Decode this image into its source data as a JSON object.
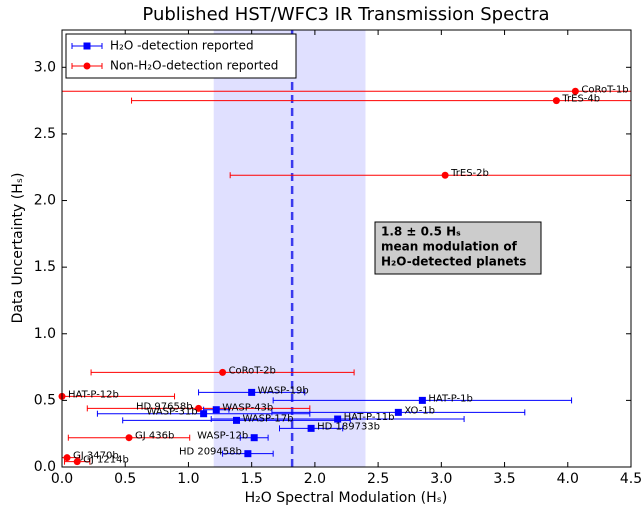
{
  "chart_data": {
    "type": "scatter",
    "title": "Published HST/WFC3 IR Transmission Spectra",
    "x_label": "H₂O Spectral Modulation (Hₛ)",
    "y_label": "Data Uncertainty (Hₛ)",
    "xlim": [
      0,
      4.5
    ],
    "ylim": [
      0,
      3.28
    ],
    "xticks": [
      {
        "value": 0,
        "label": "0.0"
      },
      {
        "value": 0.5,
        "label": "0.5"
      },
      {
        "value": 1,
        "label": "1.0"
      },
      {
        "value": 1.5,
        "label": "1.5"
      },
      {
        "value": 2,
        "label": "2.0"
      },
      {
        "value": 2.5,
        "label": "2.5"
      },
      {
        "value": 3,
        "label": "3.0"
      },
      {
        "value": 3.5,
        "label": "3.5"
      },
      {
        "value": 4,
        "label": "4.0"
      },
      {
        "value": 4.5,
        "label": "4.5"
      }
    ],
    "yticks": [
      {
        "value": 0,
        "label": "0.0"
      },
      {
        "value": 0.5,
        "label": "0.5"
      },
      {
        "value": 1,
        "label": "1.0"
      },
      {
        "value": 1.5,
        "label": "1.5"
      },
      {
        "value": 2,
        "label": "2.0"
      },
      {
        "value": 2.5,
        "label": "2.5"
      },
      {
        "value": 3,
        "label": "3.0"
      }
    ],
    "band": [
      1.2,
      2.4
    ],
    "band_color": "#e0e0ff",
    "mean_line": 1.82,
    "mean_line_color": "#3a3aee",
    "annotation": [
      "1.8 ± 0.5 Hₛ",
      "mean modulation of",
      "H₂O-detected planets"
    ],
    "legend": "upper left",
    "series": [
      {
        "name": "H₂O -detection reported",
        "color": "#0000ff",
        "marker": "square",
        "labels": [
          "WASP-19b",
          "HAT-P-1b",
          "XO-1b",
          "WASP-43b",
          "WASP-31b",
          "HAT-P-11b",
          "WASP-17b",
          "HD 189733b",
          "WASP-12b",
          "HD 209458b"
        ],
        "x": [
          1.5,
          2.85,
          2.66,
          1.22,
          1.12,
          2.18,
          1.38,
          1.97,
          1.52,
          1.47
        ],
        "values": [
          0.56,
          0.5,
          0.41,
          0.43,
          0.4,
          0.36,
          0.35,
          0.29,
          0.22,
          0.1
        ],
        "xerr": [
          0.42,
          1.18,
          1.0,
          0.1,
          0.84,
          1.0,
          0.9,
          0.25,
          0.11,
          0.2
        ]
      },
      {
        "name": "Non-H₂O-detection reported",
        "color": "#ff0000",
        "marker": "circle",
        "labels": [
          "CoRoT-1b",
          "TrES-4b",
          "TrES-2b",
          "CoRoT-2b",
          "HAT-P-12b",
          "HD 97658b",
          "GJ 436b",
          "GJ 3470b",
          "GJ 1214b"
        ],
        "x": [
          4.06,
          3.91,
          3.03,
          1.27,
          0.0,
          1.08,
          0.53,
          0.04,
          0.12
        ],
        "values": [
          2.82,
          2.75,
          2.19,
          0.71,
          0.53,
          0.44,
          0.22,
          0.07,
          0.04
        ],
        "xerr": [
          4.5,
          3.36,
          1.7,
          1.04,
          0.89,
          0.88,
          0.48,
          0.1,
          0.1
        ]
      }
    ]
  }
}
